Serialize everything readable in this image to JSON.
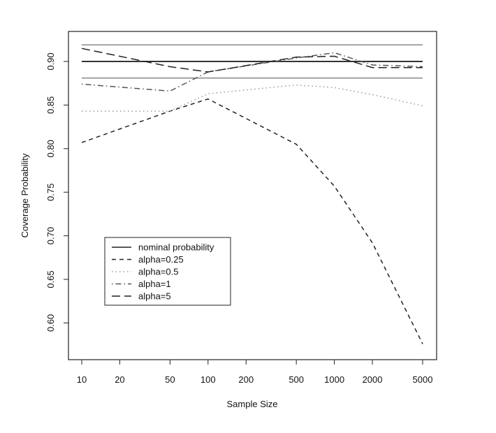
{
  "chart_data": {
    "type": "line",
    "title": "",
    "xlabel": "Sample Size",
    "ylabel": "Coverage Probability",
    "xscale": "log",
    "x": [
      10,
      50,
      100,
      500,
      1000,
      2000,
      5000
    ],
    "xticks": [
      10,
      20,
      50,
      100,
      200,
      500,
      1000,
      2000,
      5000
    ],
    "xtick_labels": [
      "10",
      "20",
      "50",
      "100",
      "200",
      "500",
      "1000",
      "2000",
      "5000"
    ],
    "yticks": [
      0.6,
      0.65,
      0.7,
      0.75,
      0.8,
      0.85,
      0.9
    ],
    "ytick_labels": [
      "0.60",
      "0.65",
      "0.70",
      "0.75",
      "0.80",
      "0.85",
      "0.90"
    ],
    "ylim": [
      0.555,
      0.935
    ],
    "xlim": [
      7.9,
      6300
    ],
    "reference_lines": [
      {
        "name": "nominal probability",
        "value": 0.9,
        "color": "#333333"
      },
      {
        "name": "upper bound",
        "value": 0.919,
        "color": "#888888"
      },
      {
        "name": "lower bound",
        "value": 0.881,
        "color": "#888888"
      }
    ],
    "series": [
      {
        "name": "alpha=0.25",
        "dash": "dashed",
        "color": "#222222",
        "values": [
          0.807,
          0.843,
          0.857,
          0.805,
          0.757,
          0.692,
          0.576
        ]
      },
      {
        "name": "alpha=0.5",
        "dash": "dotted",
        "color": "#999999",
        "values": [
          0.843,
          0.843,
          0.863,
          0.873,
          0.87,
          0.862,
          0.849
        ]
      },
      {
        "name": "alpha=1",
        "dash": "dotdash",
        "color": "#555555",
        "values": [
          0.874,
          0.866,
          0.888,
          0.904,
          0.91,
          0.896,
          0.894
        ]
      },
      {
        "name": "alpha=5",
        "dash": "longdash",
        "color": "#222222",
        "values": [
          0.915,
          0.894,
          0.888,
          0.905,
          0.906,
          0.893,
          0.893
        ]
      }
    ],
    "legend": {
      "placement": "bottom-left",
      "entries": [
        "nominal probability",
        "alpha=0.25",
        "alpha=0.5",
        "alpha=1",
        "alpha=5"
      ]
    }
  }
}
